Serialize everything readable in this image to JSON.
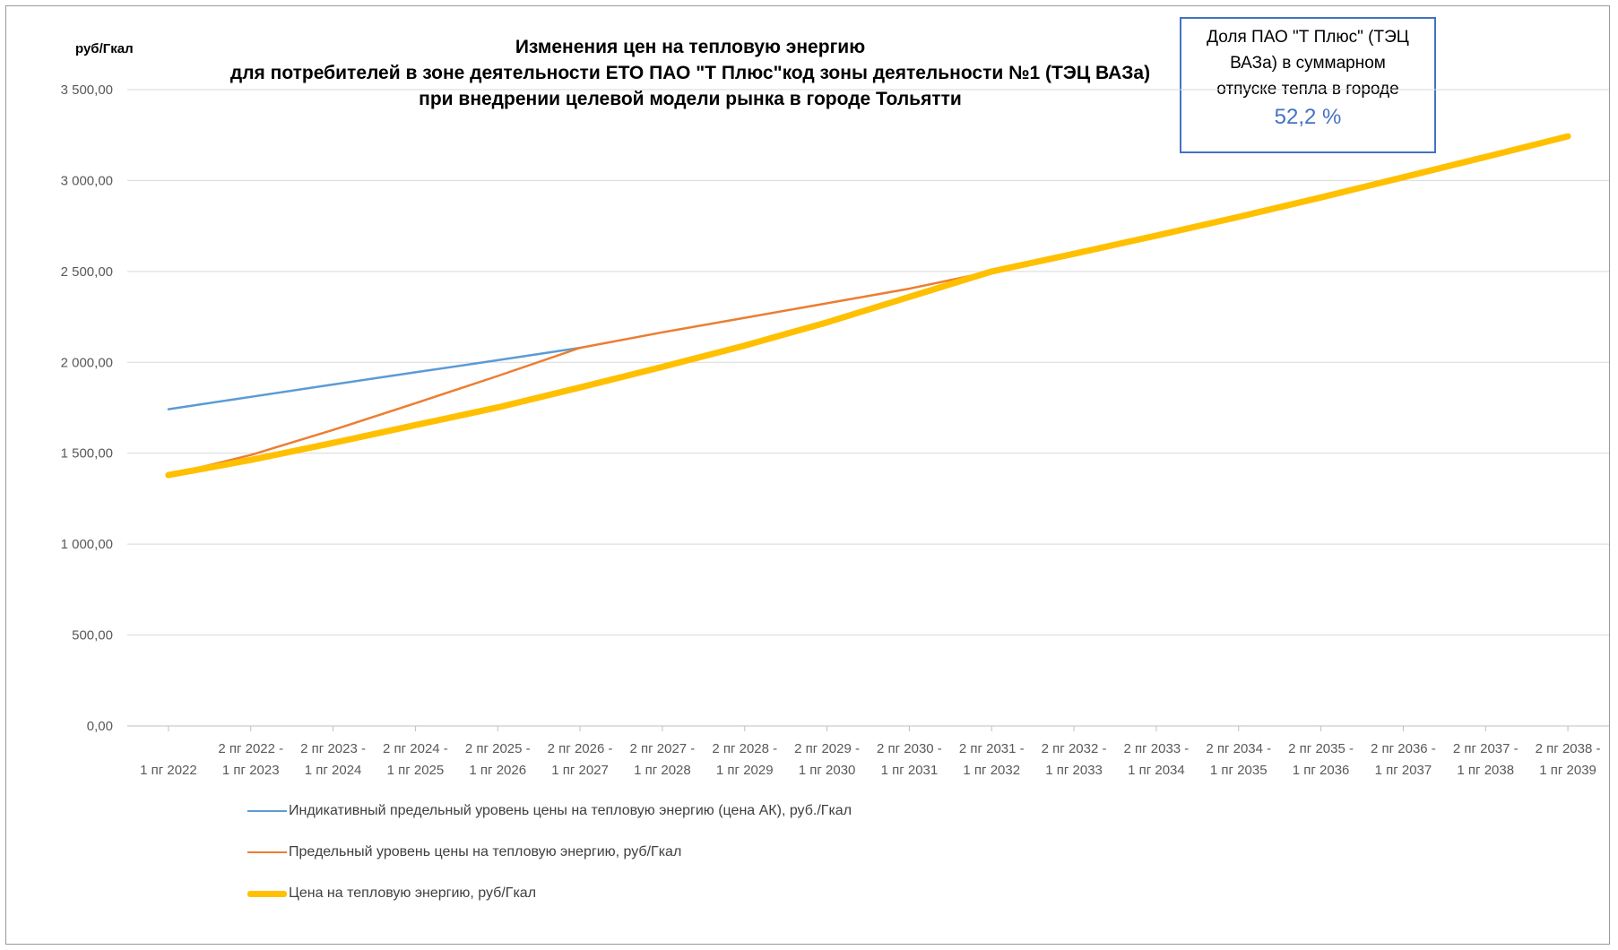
{
  "chart_data": {
    "type": "line",
    "title_lines": [
      "Изменения цен на тепловую энергию",
      "для потребителей в зоне деятельности ЕТО ПАО \"Т Плюс\"код зоны деятельности №1 (ТЭЦ ВАЗа)",
      "при внедрении целевой модели рынка в городе Тольятти"
    ],
    "ylabel": "руб/Гкал",
    "ylim": [
      0,
      3500
    ],
    "yticks": [
      "0,00",
      "500,00",
      "1 000,00",
      "1 500,00",
      "2 000,00",
      "2 500,00",
      "3 000,00",
      "3 500,00"
    ],
    "grid": true,
    "legend_position": "bottom-left",
    "categories": [
      [
        "",
        "1 пг 2022"
      ],
      [
        "2 пг 2022 -",
        "1 пг 2023"
      ],
      [
        "2 пг 2023 -",
        "1 пг 2024"
      ],
      [
        "2 пг 2024 -",
        "1 пг 2025"
      ],
      [
        "2 пг 2025 -",
        "1 пг 2026"
      ],
      [
        "2 пг 2026 -",
        "1 пг 2027"
      ],
      [
        "2 пг 2027 -",
        "1 пг 2028"
      ],
      [
        "2 пг 2028 -",
        "1 пг 2029"
      ],
      [
        "2 пг 2029 -",
        "1 пг 2030"
      ],
      [
        "2 пг 2030 -",
        "1 пг 2031"
      ],
      [
        "2 пг 2031 -",
        "1 пг 2032"
      ],
      [
        "2 пг 2032 -",
        "1 пг 2033"
      ],
      [
        "2 пг 2033 -",
        "1 пг 2034"
      ],
      [
        "2 пг 2034 -",
        "1 пг 2035"
      ],
      [
        "2 пг 2035 -",
        "1 пг 2036"
      ],
      [
        "2 пг 2036 -",
        "1 пг 2037"
      ],
      [
        "2 пг 2037 -",
        "1 пг 2038"
      ],
      [
        "2 пг 2038 -",
        "1 пг 2039"
      ]
    ],
    "series": [
      {
        "name": "Индикативный предельный уровень цены на тепловую энергию  (цена АК), руб./Гкал",
        "color": "#5b9bd5",
        "values": [
          1742,
          1810,
          1878,
          1945,
          2012,
          2080,
          null,
          null,
          null,
          null,
          null,
          null,
          null,
          null,
          null,
          null,
          null,
          null
        ]
      },
      {
        "name": "Предельный уровень цены на тепловую энергию, руб/Гкал",
        "color": "#ed7d31",
        "values": [
          1380,
          1490,
          1628,
          1775,
          1925,
          2080,
          2165,
          2245,
          2325,
          2405,
          2500,
          null,
          null,
          null,
          null,
          null,
          null,
          null
        ]
      },
      {
        "name": "Цена на тепловую энергию, руб/Гкал",
        "color": "#ffc000",
        "values": [
          1380,
          1463,
          1557,
          1655,
          1752,
          1862,
          1975,
          2092,
          2220,
          2360,
          2500,
          2597,
          2697,
          2800,
          2907,
          3018,
          3130,
          3243
        ]
      }
    ]
  },
  "infobox": {
    "line1": "Доля  ПАО \"Т Плюс\"  (ТЭЦ",
    "line2": "ВАЗа) в суммарном",
    "line3": "отпуске тепла в городе",
    "value": "52,2 %"
  }
}
